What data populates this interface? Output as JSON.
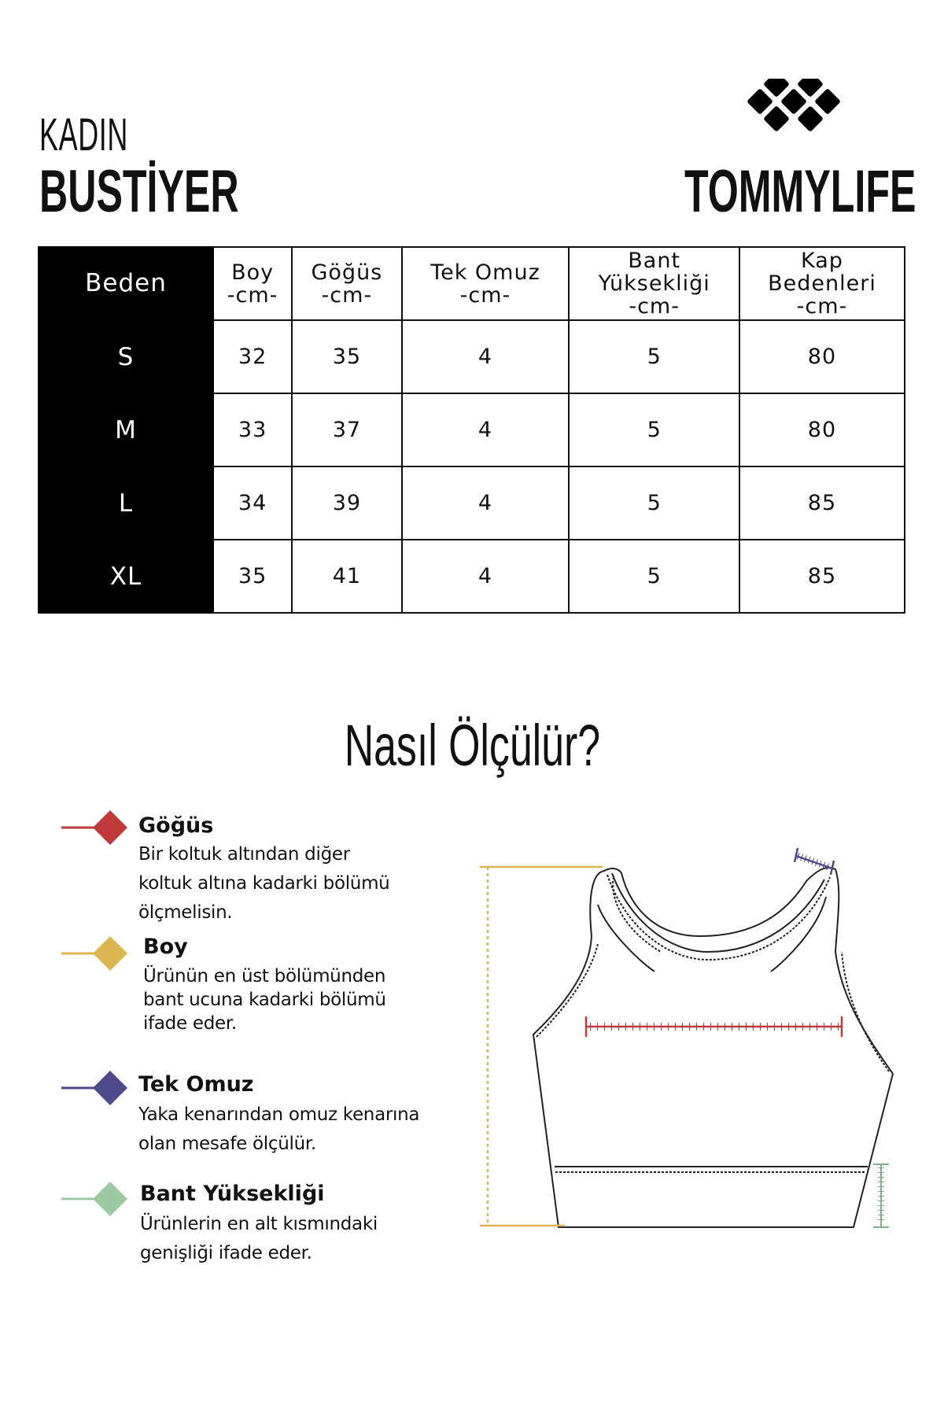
{
  "header": {
    "category": "KADIN",
    "product": "BUSTİYER",
    "brand": "TOMMYLIFE"
  },
  "table": {
    "columns": [
      {
        "l1": "Beden"
      },
      {
        "l1": "Boy",
        "l2": "-cm-"
      },
      {
        "l1": "Göğüs",
        "l2": "-cm-"
      },
      {
        "l1": "Tek Omuz",
        "l2": "-cm-"
      },
      {
        "l1": "Bant",
        "l2": "Yüksekliği",
        "l3": "-cm-"
      },
      {
        "l1": "Kap",
        "l2": "Bedenleri",
        "l3": "-cm-"
      }
    ],
    "rows": [
      [
        "S",
        "32",
        "35",
        "4",
        "5",
        "80"
      ],
      [
        "M",
        "33",
        "37",
        "4",
        "5",
        "80"
      ],
      [
        "L",
        "34",
        "39",
        "4",
        "5",
        "85"
      ],
      [
        "XL",
        "35",
        "41",
        "4",
        "5",
        "85"
      ]
    ]
  },
  "howto": {
    "title": "Nasıl Ölçülür?"
  },
  "legend": [
    {
      "title": "Göğüs",
      "lines": [
        "Bir koltuk altından diğer",
        "koltuk altına kadarki bölümü",
        "ölçmelisin."
      ],
      "color": "#c0393b"
    },
    {
      "title": "Boy",
      "lines": [
        "Ürünün en üst bölümünden",
        "bant ucuna kadarki bölümü",
        "ifade eder."
      ],
      "color": "#dcb650"
    },
    {
      "title": "Tek Omuz",
      "lines": [
        "Yaka kenarından omuz kenarına",
        "olan mesafe ölçülür."
      ],
      "color": "#4f4a8c"
    },
    {
      "title": "Bant Yüksekliği",
      "lines": [
        "Ürünlerin en alt kısmındaki",
        "genişliği ifade eder."
      ],
      "color": "#9cc9a3"
    }
  ]
}
